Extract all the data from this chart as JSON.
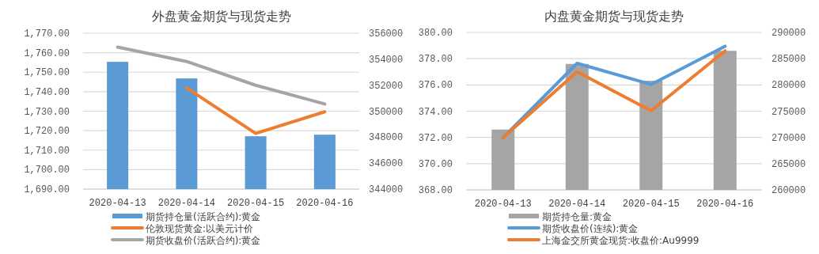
{
  "chart_data": [
    {
      "type": "bar",
      "title": "外盘黄金期货与现货走势",
      "categories": [
        "2020-04-13",
        "2020-04-14",
        "2020-04-15",
        "2020-04-16"
      ],
      "series": [
        {
          "name": "期货持仓量(活跃合约):黄金",
          "axis": "y2",
          "color": "#5b9bd5",
          "values": [
            353800,
            352520,
            348070,
            348190
          ]
        },
        {
          "name": "伦敦现货黄金:以美元计价",
          "type": "line",
          "color": "#ed7d31",
          "values": [
            null,
            1741.9,
            1718.6,
            1729.7
          ]
        },
        {
          "name": "期货收盘价(活跃合约):黄金",
          "type": "line",
          "color": "#a5a5a5",
          "values": [
            1762.9,
            1755.5,
            1743.3,
            1733.7
          ]
        }
      ],
      "ylim": [
        1690,
        1770
      ],
      "yticks": [
        {
          "value": 1690,
          "label": "1,690.00"
        },
        {
          "value": 1700,
          "label": "1,700.00"
        },
        {
          "value": 1710,
          "label": "1,710.00"
        },
        {
          "value": 1720,
          "label": "1,720.00"
        },
        {
          "value": 1730,
          "label": "1,730.00"
        },
        {
          "value": 1740,
          "label": "1,740.00"
        },
        {
          "value": 1750,
          "label": "1,750.00"
        },
        {
          "value": 1760,
          "label": "1,760.00"
        },
        {
          "value": 1770,
          "label": "1,770.00"
        }
      ],
      "y2lim": [
        344000,
        356000
      ],
      "y2ticks": [
        344000,
        346000,
        348000,
        350000,
        352000,
        354000,
        356000
      ],
      "grid": "y",
      "legend": "bottom",
      "marker": "none"
    },
    {
      "type": "bar",
      "title": "内盘黄金期货与现货走势",
      "categories": [
        "2020-04-13",
        "2020-04-14",
        "2020-04-15",
        "2020-04-16"
      ],
      "series": [
        {
          "name": "期货持仓量:黄金",
          "axis": "y2",
          "color": "#a5a5a5",
          "values": [
            271500,
            284000,
            280800,
            286500
          ]
        },
        {
          "name": "期货收盘价(连续):黄金",
          "type": "line",
          "color": "#5b9bd5",
          "values": [
            371.98,
            377.65,
            376.04,
            378.95
          ]
        },
        {
          "name": "上海金交所黄金现货:收盘价:Au9999",
          "type": "line",
          "color": "#ed7d31",
          "values": [
            371.98,
            377.0,
            374.03,
            378.6
          ]
        }
      ],
      "ylim": [
        368,
        380
      ],
      "yticks": [
        {
          "value": 368,
          "label": "368.00"
        },
        {
          "value": 370,
          "label": "370.00"
        },
        {
          "value": 372,
          "label": "372.00"
        },
        {
          "value": 374,
          "label": "374.00"
        },
        {
          "value": 376,
          "label": "376.00"
        },
        {
          "value": 378,
          "label": "378.00"
        },
        {
          "value": 380,
          "label": "380.00"
        }
      ],
      "y2lim": [
        260000,
        290000
      ],
      "y2ticks": [
        260000,
        265000,
        270000,
        275000,
        280000,
        285000,
        290000
      ],
      "grid": "y",
      "legend": "bottom",
      "marker": "none"
    }
  ]
}
